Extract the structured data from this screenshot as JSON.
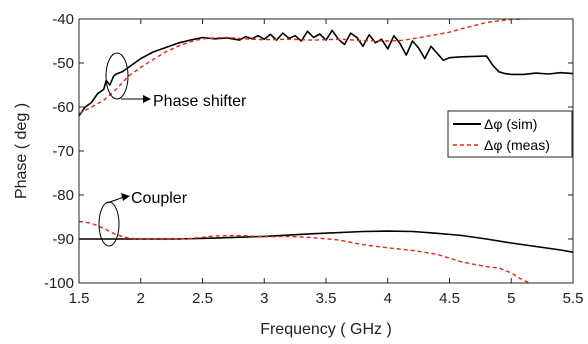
{
  "chart_data": {
    "type": "line",
    "xlabel": "Frequency ( GHz )",
    "ylabel": "Phase ( deg )",
    "xlim": [
      1.5,
      5.5
    ],
    "ylim": [
      -100,
      -40
    ],
    "xticks": [
      "1.5",
      "2",
      "2.5",
      "3",
      "3.5",
      "4",
      "4.5",
      "5",
      "5.5"
    ],
    "yticks": [
      "-40",
      "-50",
      "-60",
      "-70",
      "-80",
      "-90",
      "-100"
    ],
    "grid": false,
    "legend_position": "right",
    "colors": {
      "sim": "#000000",
      "meas": "#e8221b"
    },
    "series": [
      {
        "name": "Δφ (sim)",
        "group": "phase-shifter",
        "style": "solid",
        "x": [
          1.5,
          1.55,
          1.6,
          1.65,
          1.7,
          1.72,
          1.75,
          1.78,
          1.8,
          1.85,
          1.9,
          1.95,
          2.0,
          2.1,
          2.2,
          2.3,
          2.4,
          2.5,
          2.6,
          2.7,
          2.8,
          2.85,
          2.9,
          2.95,
          3.0,
          3.05,
          3.1,
          3.15,
          3.2,
          3.25,
          3.3,
          3.35,
          3.4,
          3.45,
          3.5,
          3.55,
          3.6,
          3.65,
          3.7,
          3.75,
          3.8,
          3.85,
          3.9,
          3.95,
          4.0,
          4.05,
          4.1,
          4.15,
          4.2,
          4.25,
          4.3,
          4.35,
          4.4,
          4.45,
          4.5,
          4.6,
          4.7,
          4.8,
          4.85,
          4.9,
          4.95,
          5.0,
          5.1,
          5.2,
          5.3,
          5.4,
          5.5
        ],
        "y": [
          -62,
          -60,
          -59,
          -57,
          -56,
          -54,
          -55,
          -53,
          -52.5,
          -52,
          -51,
          -50,
          -49,
          -47.5,
          -46.5,
          -45.5,
          -44.8,
          -44.2,
          -44.5,
          -44.3,
          -44.8,
          -44,
          -44.5,
          -43.8,
          -44.6,
          -43.5,
          -44.8,
          -43.2,
          -44.4,
          -43.8,
          -45,
          -42.8,
          -44.2,
          -43.4,
          -44.8,
          -42.6,
          -44.6,
          -45.8,
          -43.2,
          -44.2,
          -46.2,
          -43.6,
          -45.4,
          -44.6,
          -46.8,
          -43.8,
          -45.6,
          -48.2,
          -45,
          -46.6,
          -49,
          -46.2,
          -47.8,
          -49.4,
          -48.8,
          -48.6,
          -48.5,
          -48.4,
          -50.5,
          -52,
          -52.4,
          -52.6,
          -52.6,
          -52.3,
          -52.5,
          -52.2,
          -52.4
        ]
      },
      {
        "name": "Δφ (meas)",
        "group": "phase-shifter",
        "style": "dashed",
        "x": [
          1.5,
          1.6,
          1.7,
          1.8,
          1.9,
          2.0,
          2.1,
          2.2,
          2.3,
          2.4,
          2.5,
          2.6,
          2.7,
          2.8,
          2.9,
          3.0,
          3.2,
          3.4,
          3.6,
          3.8,
          4.0,
          4.1,
          4.2,
          4.3,
          4.4,
          4.5,
          4.6,
          4.7,
          4.8,
          4.9,
          5.0,
          5.1
        ],
        "y": [
          -61.5,
          -60,
          -58.5,
          -56,
          -53,
          -51,
          -49.2,
          -47.5,
          -46.2,
          -45.2,
          -44.5,
          -44.3,
          -44.2,
          -44.4,
          -44.6,
          -44.7,
          -44.6,
          -44.8,
          -44.6,
          -44.9,
          -45,
          -44.9,
          -44.5,
          -44,
          -43.5,
          -43,
          -42.2,
          -41.5,
          -40.8,
          -40.4,
          -40.1,
          -40
        ]
      },
      {
        "name": "Δφ (sim)",
        "group": "coupler",
        "style": "solid",
        "x": [
          1.5,
          1.8,
          2.0,
          2.3,
          2.6,
          3.0,
          3.4,
          3.8,
          4.0,
          4.2,
          4.4,
          4.6,
          4.8,
          5.0,
          5.2,
          5.4,
          5.5
        ],
        "y": [
          -90,
          -90,
          -90,
          -90,
          -89.8,
          -89.4,
          -88.8,
          -88.3,
          -88.2,
          -88.3,
          -88.7,
          -89.2,
          -90,
          -90.9,
          -91.7,
          -92.5,
          -93
        ]
      },
      {
        "name": "Δφ (meas)",
        "group": "coupler",
        "style": "dashed",
        "x": [
          1.5,
          1.6,
          1.7,
          1.8,
          1.9,
          2.0,
          2.2,
          2.4,
          2.6,
          2.8,
          3.0,
          3.2,
          3.4,
          3.6,
          3.8,
          4.0,
          4.2,
          4.4,
          4.6,
          4.8,
          4.9,
          5.0,
          5.05,
          5.1,
          5.15
        ],
        "y": [
          -86,
          -86.4,
          -87.6,
          -89,
          -89.8,
          -90,
          -90.1,
          -89.9,
          -89.3,
          -89.2,
          -89.5,
          -89.4,
          -89.7,
          -90.2,
          -91.3,
          -92,
          -92.6,
          -93.5,
          -95.2,
          -96.3,
          -96.6,
          -97.7,
          -98.6,
          -99.4,
          -100
        ]
      }
    ],
    "annotations": [
      {
        "label": "Phase shifter",
        "target": "phase-shifter-curves"
      },
      {
        "label": "Coupler",
        "target": "coupler-curves"
      }
    ]
  }
}
